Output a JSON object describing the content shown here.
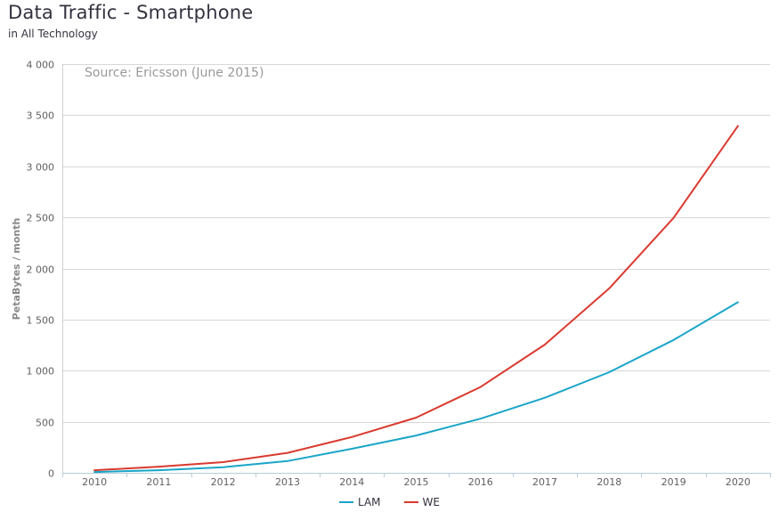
{
  "header": {
    "title": "Data Traffic - Smartphone",
    "subtitle": "in All Technology"
  },
  "chart_data": {
    "type": "line",
    "title": "Data Traffic - Smartphone",
    "subtitle": "in All Technology",
    "annotation": "Source: Ericsson (June 2015)",
    "xlabel": "",
    "ylabel": "PetaBytes / month",
    "categories": [
      "2010",
      "2011",
      "2012",
      "2013",
      "2014",
      "2015",
      "2016",
      "2017",
      "2018",
      "2019",
      "2020"
    ],
    "ylim": [
      0,
      4000
    ],
    "yticks": [
      0,
      500,
      1000,
      1500,
      2000,
      2500,
      3000,
      3500,
      4000
    ],
    "ytick_labels": [
      "0",
      "500",
      "1 000",
      "1 500",
      "2 000",
      "2 500",
      "3 000",
      "3 500",
      "4 000"
    ],
    "grid": true,
    "legend_position": "bottom-center",
    "series": [
      {
        "name": "LAM",
        "color": "#1aa5c8",
        "values": [
          8,
          25,
          55,
          115,
          235,
          365,
          530,
          735,
          985,
          1300,
          1670
        ]
      },
      {
        "name": "WE",
        "color": "#d93a2f",
        "values": [
          25,
          60,
          105,
          195,
          350,
          540,
          840,
          1255,
          1805,
          2495,
          3395
        ]
      }
    ]
  }
}
